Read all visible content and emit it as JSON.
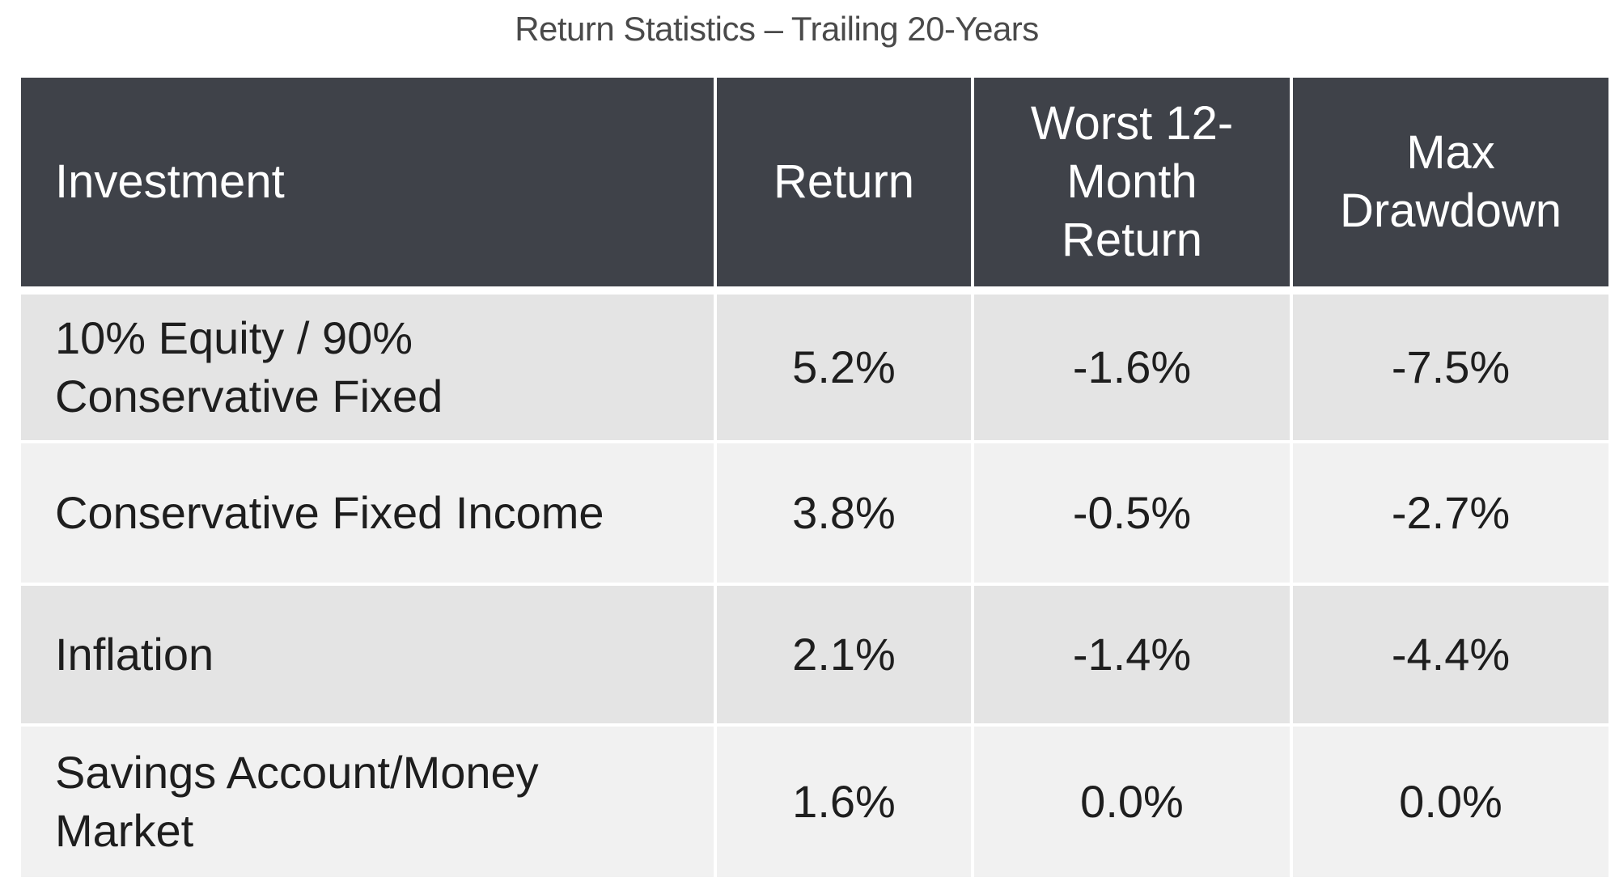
{
  "title": "Return Statistics – Trailing 20-Years",
  "table": {
    "headers": [
      "Investment",
      "Return",
      "Worst 12-Month Return",
      "Max Drawdown"
    ],
    "rows": [
      {
        "investment": "10% Equity / 90% Conservative Fixed",
        "return": "5.2%",
        "worst_12_month": "-1.6%",
        "max_drawdown": "-7.5%"
      },
      {
        "investment": "Conservative Fixed Income",
        "return": "3.8%",
        "worst_12_month": "-0.5%",
        "max_drawdown": "-2.7%"
      },
      {
        "investment": "Inflation",
        "return": "2.1%",
        "worst_12_month": "-1.4%",
        "max_drawdown": "-4.4%"
      },
      {
        "investment": "Savings Account/Money Market",
        "return": "1.6%",
        "worst_12_month": "0.0%",
        "max_drawdown": "0.0%"
      }
    ]
  },
  "colors": {
    "header_bg": "#3f4249",
    "header_text": "#ffffff",
    "row_odd": "#e4e4e4",
    "row_even": "#f1f1f1",
    "title_text": "#4a4a4a"
  }
}
